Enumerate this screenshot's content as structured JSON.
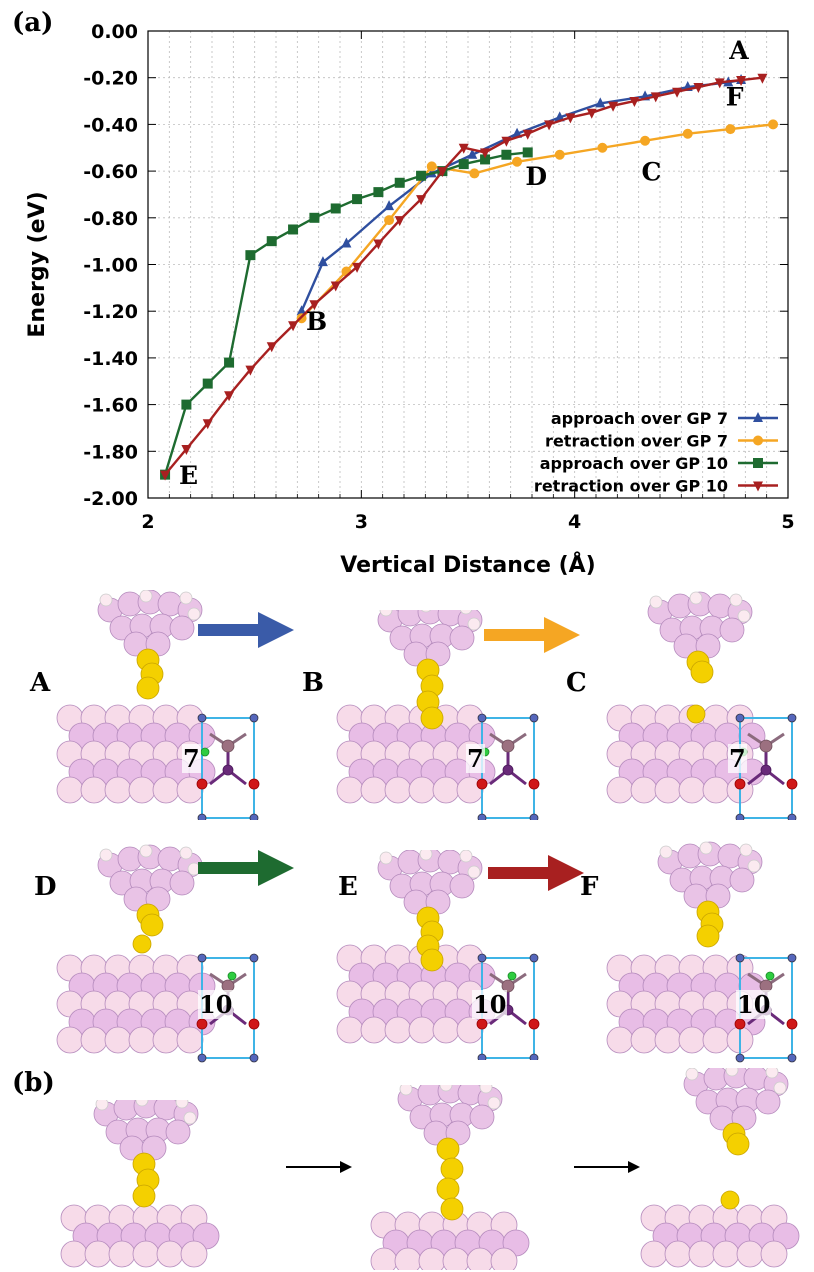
{
  "panel_labels": {
    "a": "(a)",
    "b": "(b)"
  },
  "chart_data": {
    "type": "line",
    "title": "",
    "xlabel": "Vertical Distance (Å)",
    "ylabel": "Energy (eV)",
    "xlim": [
      2,
      5
    ],
    "ylim": [
      -2.0,
      0.0
    ],
    "xticks": [
      2,
      3,
      4,
      5
    ],
    "xtick_labels": [
      "2",
      "3",
      "4",
      "5"
    ],
    "yticks": [
      0.0,
      -0.2,
      -0.4,
      -0.6,
      -0.8,
      -1.0,
      -1.2,
      -1.4,
      -1.6,
      -1.8,
      -2.0
    ],
    "ytick_labels": [
      "0.00",
      "-0.20",
      "-0.40",
      "-0.60",
      "-0.80",
      "-1.00",
      "-1.20",
      "-1.40",
      "-1.60",
      "-1.80",
      "-2.00"
    ],
    "grid": true,
    "legend_position": "bottom-right",
    "series": [
      {
        "name": "approach over GP 7",
        "color": "#2f4f9f",
        "marker": "triangle-up",
        "x": [
          4.78,
          4.72,
          4.53,
          4.33,
          4.12,
          3.93,
          3.73,
          3.52,
          3.33,
          3.13,
          2.93,
          2.82,
          2.72
        ],
        "y": [
          -0.21,
          -0.22,
          -0.24,
          -0.28,
          -0.31,
          -0.37,
          -0.44,
          -0.53,
          -0.61,
          -0.75,
          -0.91,
          -0.99,
          -1.2
        ]
      },
      {
        "name": "retraction over GP 7",
        "color": "#f5a623",
        "marker": "circle",
        "x": [
          2.72,
          2.93,
          3.13,
          3.33,
          3.53,
          3.73,
          3.93,
          4.13,
          4.33,
          4.53,
          4.73,
          4.93
        ],
        "y": [
          -1.23,
          -1.03,
          -0.81,
          -0.58,
          -0.61,
          -0.56,
          -0.53,
          -0.5,
          -0.47,
          -0.44,
          -0.42,
          -0.4
        ]
      },
      {
        "name": "approach over GP 10",
        "color": "#1e6b30",
        "marker": "square",
        "x": [
          3.78,
          3.68,
          3.58,
          3.48,
          3.38,
          3.28,
          3.18,
          3.08,
          2.98,
          2.88,
          2.78,
          2.68,
          2.58,
          2.48,
          2.38,
          2.28,
          2.18,
          2.08
        ],
        "y": [
          -0.52,
          -0.53,
          -0.55,
          -0.57,
          -0.6,
          -0.62,
          -0.65,
          -0.69,
          -0.72,
          -0.76,
          -0.8,
          -0.85,
          -0.9,
          -0.96,
          -1.42,
          -1.51,
          -1.6,
          -1.9
        ]
      },
      {
        "name": "retraction over GP 10",
        "color": "#a82020",
        "marker": "triangle-down",
        "x": [
          2.08,
          2.18,
          2.28,
          2.38,
          2.48,
          2.58,
          2.68,
          2.78,
          2.88,
          2.98,
          3.08,
          3.18,
          3.28,
          3.38,
          3.48,
          3.58,
          3.68,
          3.78,
          3.88,
          3.98,
          4.08,
          4.18,
          4.28,
          4.38,
          4.48,
          4.58,
          4.68,
          4.78,
          4.88
        ],
        "y": [
          -1.9,
          -1.79,
          -1.68,
          -1.56,
          -1.45,
          -1.35,
          -1.26,
          -1.17,
          -1.09,
          -1.01,
          -0.91,
          -0.81,
          -0.72,
          -0.6,
          -0.5,
          -0.52,
          -0.47,
          -0.44,
          -0.4,
          -0.37,
          -0.35,
          -0.32,
          -0.3,
          -0.28,
          -0.26,
          -0.24,
          -0.22,
          -0.21,
          -0.2
        ]
      }
    ],
    "annotations": [
      {
        "text": "A",
        "x": 4.77,
        "y": -0.12
      },
      {
        "text": "F",
        "x": 4.75,
        "y": -0.32
      },
      {
        "text": "C",
        "x": 4.36,
        "y": -0.64
      },
      {
        "text": "D",
        "x": 3.82,
        "y": -0.66
      },
      {
        "text": "B",
        "x": 2.79,
        "y": -1.28
      },
      {
        "text": "E",
        "x": 2.19,
        "y": -1.94
      }
    ]
  },
  "structure_panels": {
    "states": [
      "A",
      "B",
      "C",
      "D",
      "E",
      "F"
    ],
    "site_numbers": [
      "7",
      "7",
      "7",
      "10",
      "10",
      "10"
    ],
    "arrow_colors": [
      "#3a5ba8",
      "#f5a623",
      "#1e6b30",
      "#a82020"
    ]
  }
}
